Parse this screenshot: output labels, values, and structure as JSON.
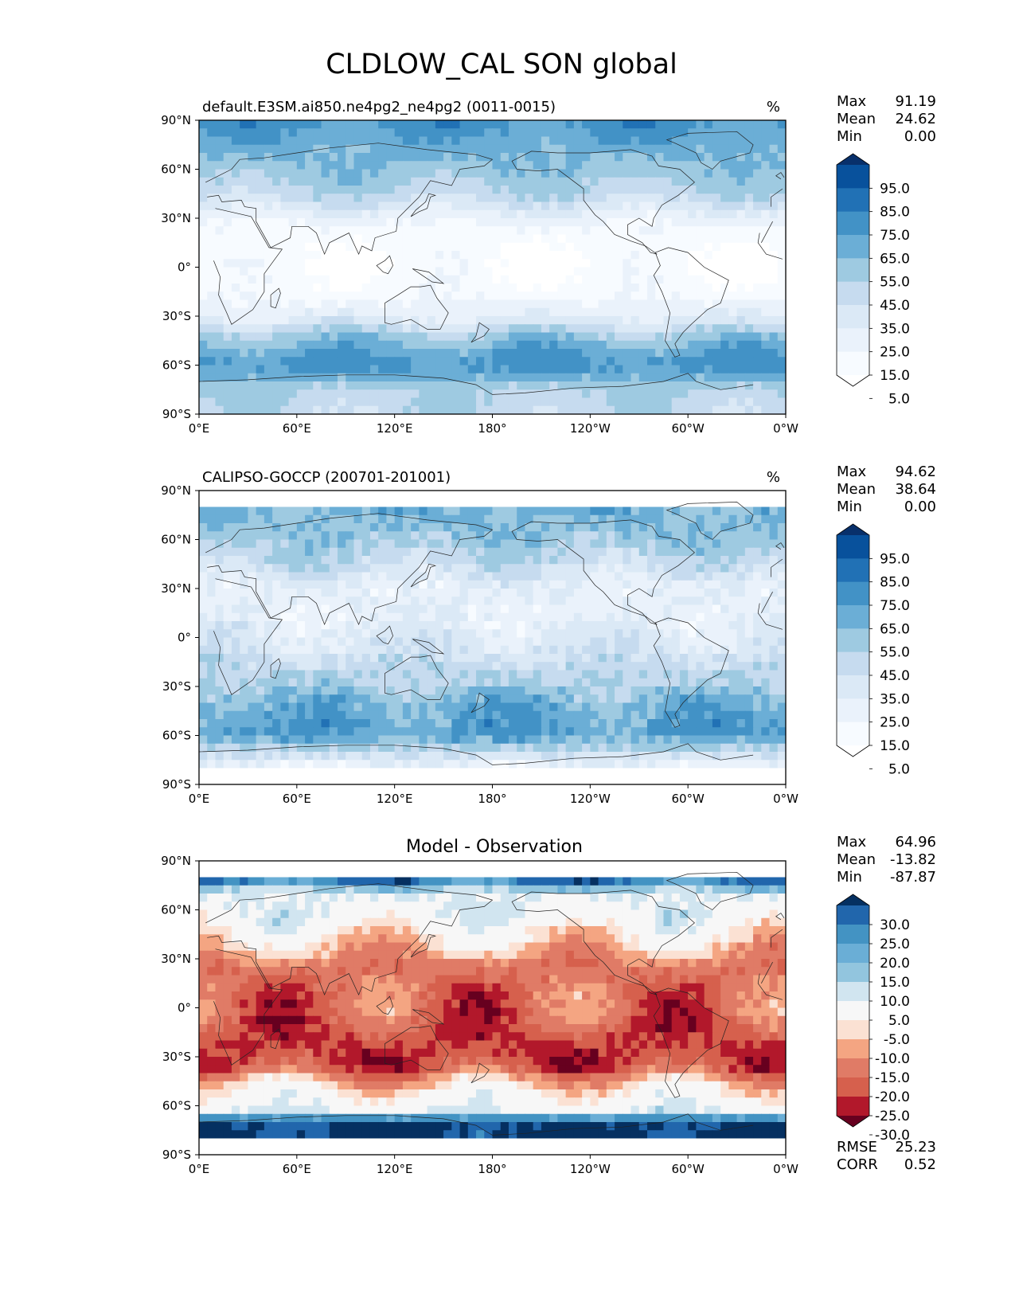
{
  "figure": {
    "title": "CLDLOW_CAL SON global"
  },
  "panels": [
    {
      "id": "model",
      "subtitle_left": "default.E3SM.ai850.ne4pg2_ne4pg2 (0011-0015)",
      "subtitle_right": "%",
      "center_title": "",
      "stats": [
        {
          "label": "Max",
          "value": "91.19"
        },
        {
          "label": "Mean",
          "value": "24.62"
        },
        {
          "label": "Min",
          "value": "0.00"
        }
      ],
      "footer_stats": []
    },
    {
      "id": "obs",
      "subtitle_left": "CALIPSO-GOCCP (200701-201001)",
      "subtitle_right": "%",
      "center_title": "",
      "stats": [
        {
          "label": "Max",
          "value": "94.62"
        },
        {
          "label": "Mean",
          "value": "38.64"
        },
        {
          "label": "Min",
          "value": "0.00"
        }
      ],
      "footer_stats": []
    },
    {
      "id": "diff",
      "subtitle_left": "",
      "subtitle_right": "",
      "center_title": "Model - Observation",
      "stats": [
        {
          "label": "Max",
          "value": "64.96"
        },
        {
          "label": "Mean",
          "value": "-13.82"
        },
        {
          "label": "Min",
          "value": "-87.87"
        }
      ],
      "footer_stats": [
        {
          "label": "RMSE",
          "value": "25.23"
        },
        {
          "label": "CORR",
          "value": "0.52"
        }
      ]
    }
  ],
  "axes": {
    "x_ticks": [
      "0°E",
      "60°E",
      "120°E",
      "180°",
      "120°W",
      "60°W",
      "0°W"
    ],
    "y_ticks": [
      "90°N",
      "60°N",
      "30°N",
      "0°",
      "30°S",
      "60°S",
      "90°S"
    ]
  },
  "chart_data": [
    {
      "type": "heatmap",
      "panel": "model",
      "projection": "equirectangular",
      "lon_range": [
        0,
        360
      ],
      "lat_range": [
        -90,
        90
      ],
      "units": "%",
      "colormap": "Blues",
      "colorbar": {
        "labels": [
          "95.0",
          "85.0",
          "75.0",
          "65.0",
          "55.0",
          "45.0",
          "35.0",
          "25.0",
          "15.0",
          "5.0"
        ],
        "colors": [
          "#08306b",
          "#08519c",
          "#2171b5",
          "#4292c6",
          "#6baed6",
          "#9ecae1",
          "#c6dbef",
          "#dbe9f6",
          "#eaf2fb",
          "#f7fbff",
          "#ffffff"
        ],
        "extend": "both"
      },
      "zonal_pattern": [
        {
          "lat": 90,
          "value": 70
        },
        {
          "lat": 75,
          "value": 60
        },
        {
          "lat": 60,
          "value": 52
        },
        {
          "lat": 45,
          "value": 42
        },
        {
          "lat": 30,
          "value": 18
        },
        {
          "lat": 15,
          "value": 8
        },
        {
          "lat": 0,
          "value": 6
        },
        {
          "lat": -15,
          "value": 10
        },
        {
          "lat": -30,
          "value": 24
        },
        {
          "lat": -45,
          "value": 55
        },
        {
          "lat": -60,
          "value": 70
        },
        {
          "lat": -75,
          "value": 45
        },
        {
          "lat": -90,
          "value": 40
        }
      ]
    },
    {
      "type": "heatmap",
      "panel": "obs",
      "projection": "equirectangular",
      "lon_range": [
        0,
        360
      ],
      "lat_range": [
        -90,
        90
      ],
      "units": "%",
      "colormap": "Blues",
      "colorbar": {
        "labels": [
          "95.0",
          "85.0",
          "75.0",
          "65.0",
          "55.0",
          "45.0",
          "35.0",
          "25.0",
          "15.0",
          "5.0"
        ],
        "colors": [
          "#08306b",
          "#08519c",
          "#2171b5",
          "#4292c6",
          "#6baed6",
          "#9ecae1",
          "#c6dbef",
          "#dbe9f6",
          "#eaf2fb",
          "#f7fbff",
          "#ffffff"
        ],
        "extend": "both"
      },
      "zonal_pattern": [
        {
          "lat": 82,
          "value": 60
        },
        {
          "lat": 60,
          "value": 50
        },
        {
          "lat": 45,
          "value": 38
        },
        {
          "lat": 30,
          "value": 22
        },
        {
          "lat": 15,
          "value": 22
        },
        {
          "lat": 0,
          "value": 28
        },
        {
          "lat": -15,
          "value": 38
        },
        {
          "lat": -30,
          "value": 48
        },
        {
          "lat": -45,
          "value": 62
        },
        {
          "lat": -60,
          "value": 65
        },
        {
          "lat": -70,
          "value": 40
        },
        {
          "lat": -82,
          "value": 10
        }
      ]
    },
    {
      "type": "heatmap",
      "panel": "diff",
      "projection": "equirectangular",
      "lon_range": [
        0,
        360
      ],
      "lat_range": [
        -90,
        90
      ],
      "units": "%",
      "colormap": "RdBu",
      "colorbar": {
        "labels": [
          "30.0",
          "25.0",
          "20.0",
          "15.0",
          "10.0",
          "5.0",
          "-5.0",
          "-10.0",
          "-15.0",
          "-20.0",
          "-25.0",
          "-30.0"
        ],
        "colors": [
          "#053061",
          "#2166ac",
          "#4393c3",
          "#6aaed6",
          "#92c5de",
          "#d1e5f0",
          "#f7f7f7",
          "#fbe1d3",
          "#f4a582",
          "#e07b66",
          "#d6604d",
          "#b2182b",
          "#67001f"
        ],
        "extend": "both"
      },
      "zonal_pattern": [
        {
          "lat": 82,
          "value": 35
        },
        {
          "lat": 70,
          "value": 5
        },
        {
          "lat": 55,
          "value": 2
        },
        {
          "lat": 40,
          "value": -8
        },
        {
          "lat": 25,
          "value": -18
        },
        {
          "lat": 10,
          "value": -20
        },
        {
          "lat": 0,
          "value": -20
        },
        {
          "lat": -20,
          "value": -25
        },
        {
          "lat": -35,
          "value": -25
        },
        {
          "lat": -50,
          "value": -5
        },
        {
          "lat": -62,
          "value": 3
        },
        {
          "lat": -70,
          "value": 30
        },
        {
          "lat": -82,
          "value": 35
        }
      ]
    }
  ]
}
